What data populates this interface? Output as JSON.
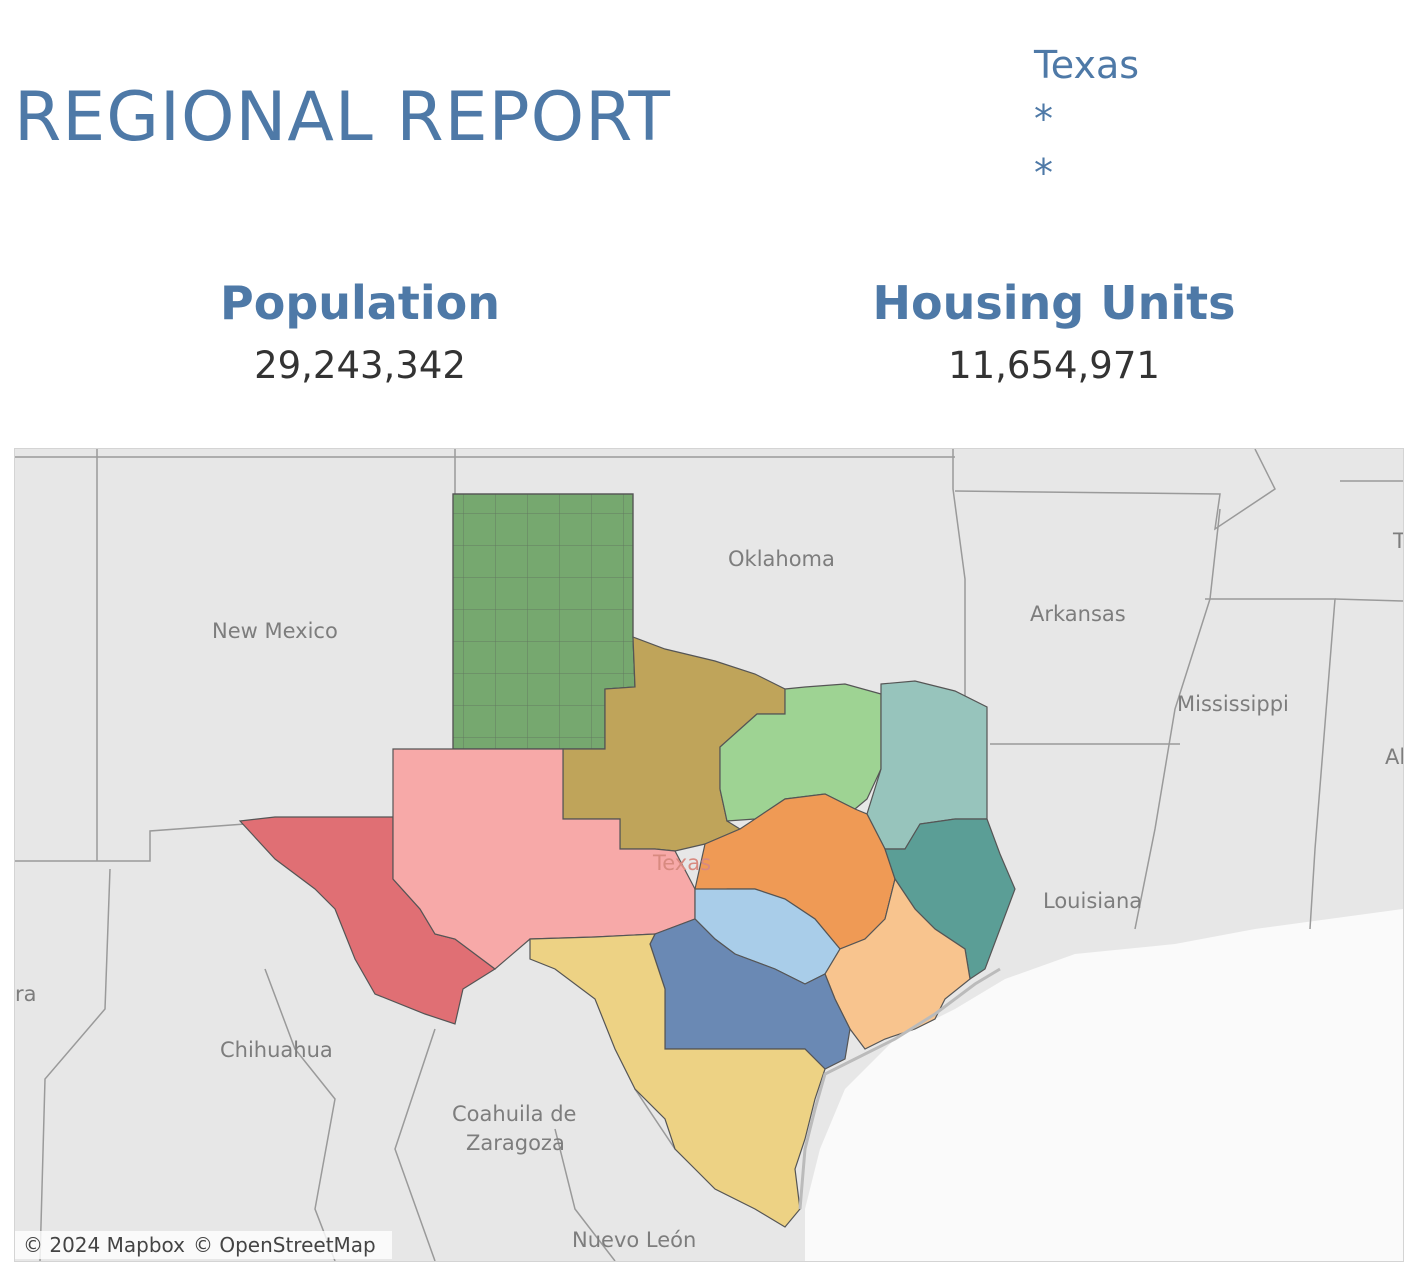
{
  "header": {
    "title": "REGIONAL REPORT"
  },
  "filters": [
    "Texas",
    "*",
    "*"
  ],
  "kpis": {
    "population": {
      "label": "Population",
      "value": "29,243,342"
    },
    "housing": {
      "label": "Housing Units",
      "value": "11,654,971"
    }
  },
  "map": {
    "labels": {
      "oklahoma": "Oklahoma",
      "new_mexico": "New Mexico",
      "arkansas": "Arkansas",
      "mississippi": "Mississippi",
      "louisiana": "Louisiana",
      "chihuahua": "Chihuahua",
      "coahuila_1": "Coahuila de",
      "coahuila_2": "Zaragoza",
      "nuevo_leon": "Nuevo León",
      "texas": "Texas",
      "edge_ara": "ra",
      "edge_ala": "Ala",
      "edge_t": "T"
    },
    "regions": [
      {
        "name": "panhandle",
        "color": "#76a86f"
      },
      {
        "name": "north-central",
        "color": "#bfa45a"
      },
      {
        "name": "north-texas",
        "color": "#9ed393"
      },
      {
        "name": "northeast",
        "color": "#97c4bc"
      },
      {
        "name": "far-west",
        "color": "#e06f74"
      },
      {
        "name": "west",
        "color": "#f7a9a8"
      },
      {
        "name": "central",
        "color": "#ef9a55"
      },
      {
        "name": "capital",
        "color": "#a9cde9"
      },
      {
        "name": "southeast",
        "color": "#5b9e96"
      },
      {
        "name": "gulf-coast",
        "color": "#f8c48e"
      },
      {
        "name": "south-central",
        "color": "#6a89b4"
      },
      {
        "name": "south",
        "color": "#edd284"
      }
    ],
    "attribution": [
      "© 2024 Mapbox",
      "© OpenStreetMap"
    ]
  }
}
